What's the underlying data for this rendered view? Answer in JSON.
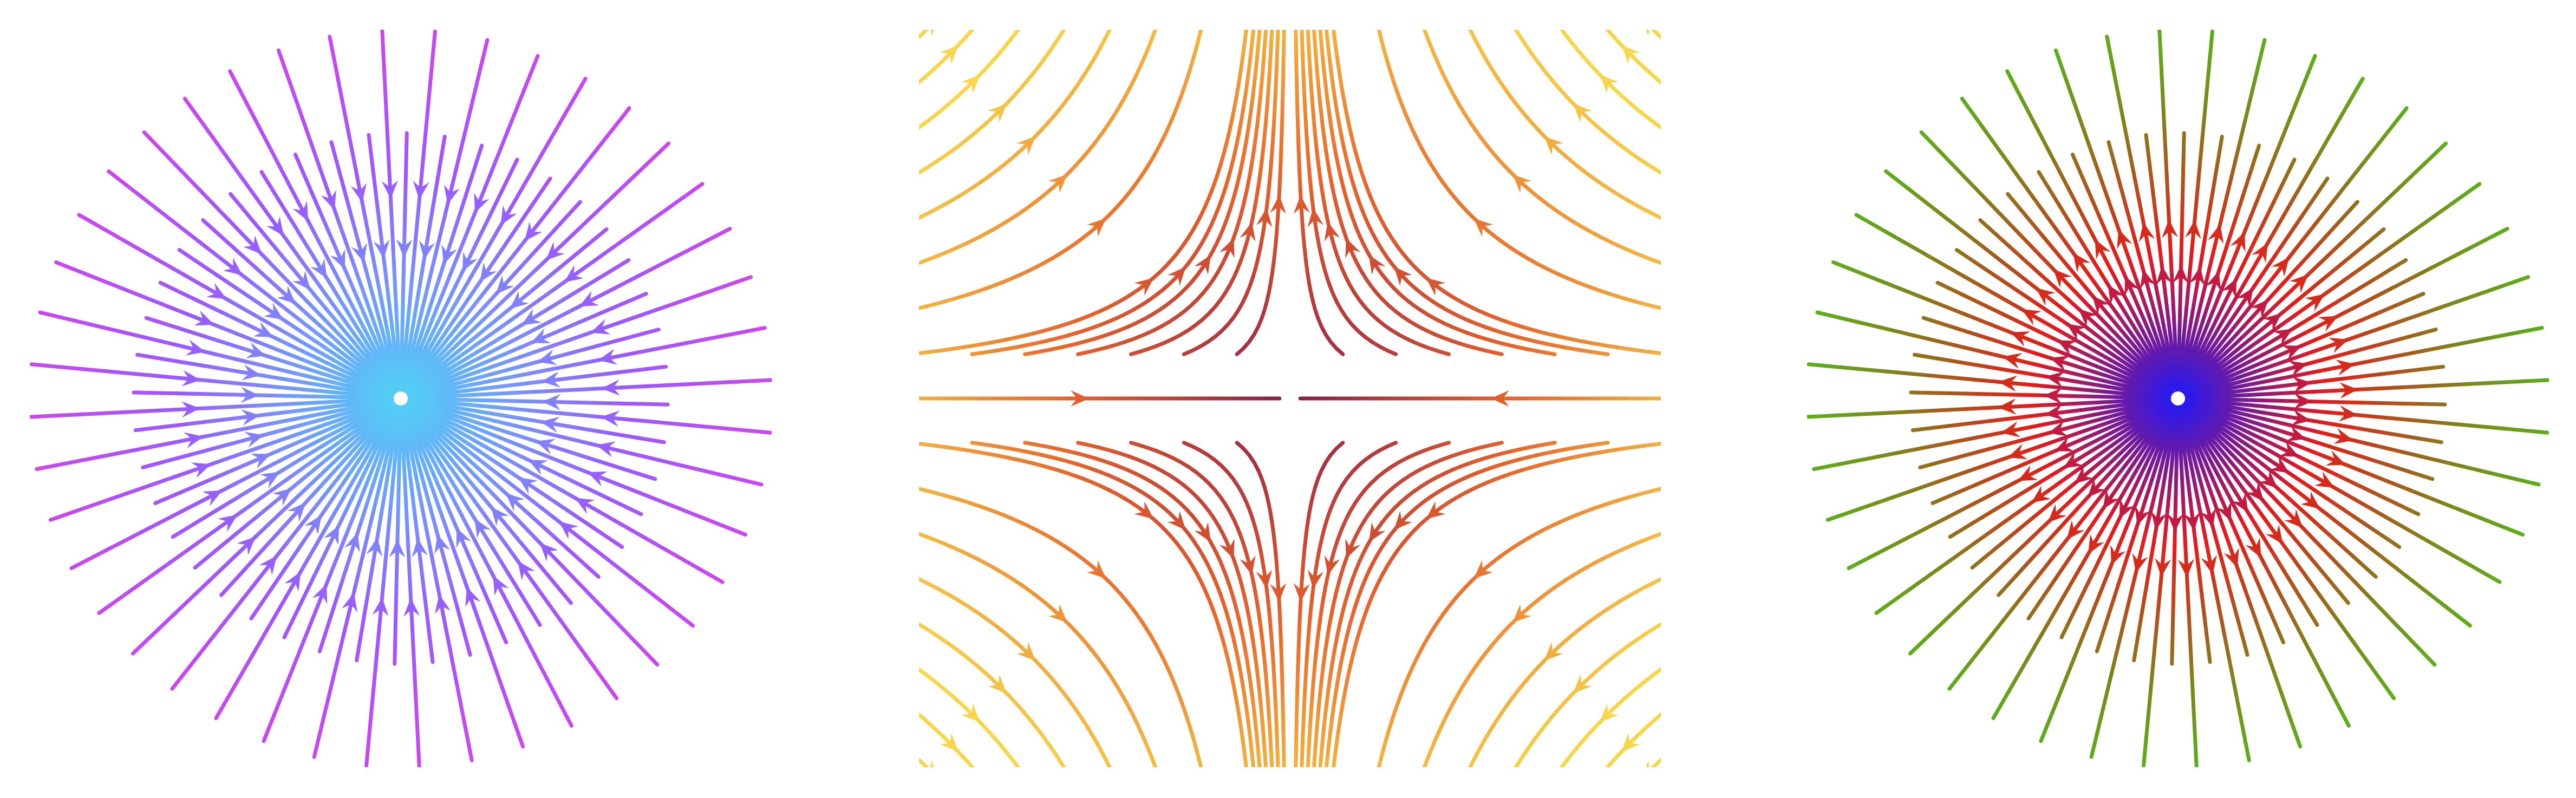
{
  "figure": {
    "description_free": true,
    "panels": [
      {
        "id": "sink",
        "field": "sink",
        "gradient": {
          "center": "#4fd3f5",
          "mid": "#9b59ff",
          "edge": "#e63be6"
        }
      },
      {
        "id": "saddle",
        "field": "saddle",
        "gradient": {
          "center": "#8b1a4a",
          "mid": "#e8622a",
          "edge": "#f7d64a"
        }
      },
      {
        "id": "source",
        "field": "source",
        "gradient": {
          "center": "#1a1aff",
          "mid": "#e61a1a",
          "midouter": "#7a8a1a",
          "edge": "#3fd11a"
        }
      }
    ]
  }
}
